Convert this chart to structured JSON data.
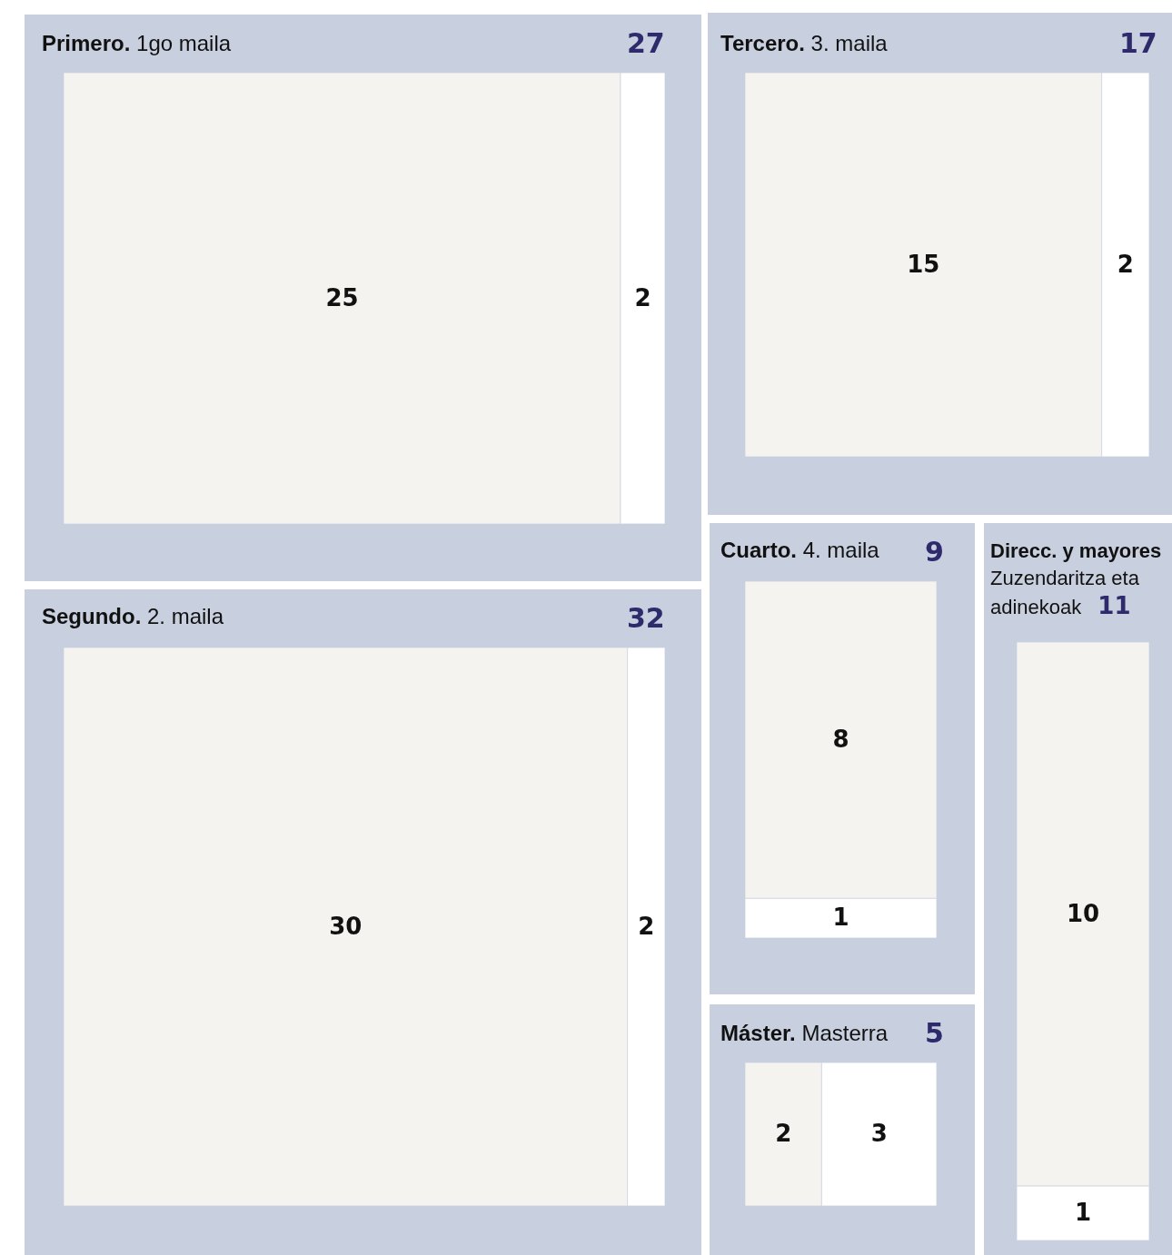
{
  "chart_data": [
    {
      "type": "other",
      "title": "Primero.",
      "subtitle": "1go maila",
      "categories": [
        null,
        null
      ],
      "values": [
        25,
        2
      ],
      "colors": [
        "#f4f3ef",
        "#ffffff"
      ],
      "data_labels": true,
      "annotations": [
        "27"
      ]
    },
    {
      "type": "other",
      "title": "Tercero.",
      "subtitle": "3. maila",
      "categories": [
        null,
        null
      ],
      "values": [
        15,
        2
      ],
      "colors": [
        "#f4f3ef",
        "#ffffff"
      ],
      "data_labels": true,
      "annotations": [
        "17"
      ]
    },
    {
      "type": "other",
      "title": "Segundo.",
      "subtitle": "2. maila",
      "categories": [
        null,
        null
      ],
      "values": [
        30,
        2
      ],
      "colors": [
        "#f4f3ef",
        "#ffffff"
      ],
      "data_labels": true,
      "annotations": [
        "32"
      ]
    },
    {
      "type": "other",
      "title": "Cuarto.",
      "subtitle": "4. maila",
      "categories": [
        null,
        null
      ],
      "values": [
        8,
        1
      ],
      "colors": [
        "#f4f3ef",
        "#ffffff"
      ],
      "data_labels": true,
      "annotations": [
        "9"
      ]
    },
    {
      "type": "other",
      "title": "Máster.",
      "subtitle": "Masterra",
      "categories": [
        null,
        null
      ],
      "values": [
        2,
        3
      ],
      "colors": [
        "#f4f3ef",
        "#ffffff"
      ],
      "data_labels": true,
      "annotations": [
        "5"
      ]
    },
    {
      "type": "other",
      "title": "Direcc. y mayores",
      "subtitle": "Zuzendaritza eta adinekoak",
      "categories": [
        null,
        null
      ],
      "values": [
        10,
        1
      ],
      "colors": [
        "#f4f3ef",
        "#ffffff"
      ],
      "data_labels": true,
      "annotations": [
        "11"
      ]
    }
  ]
}
